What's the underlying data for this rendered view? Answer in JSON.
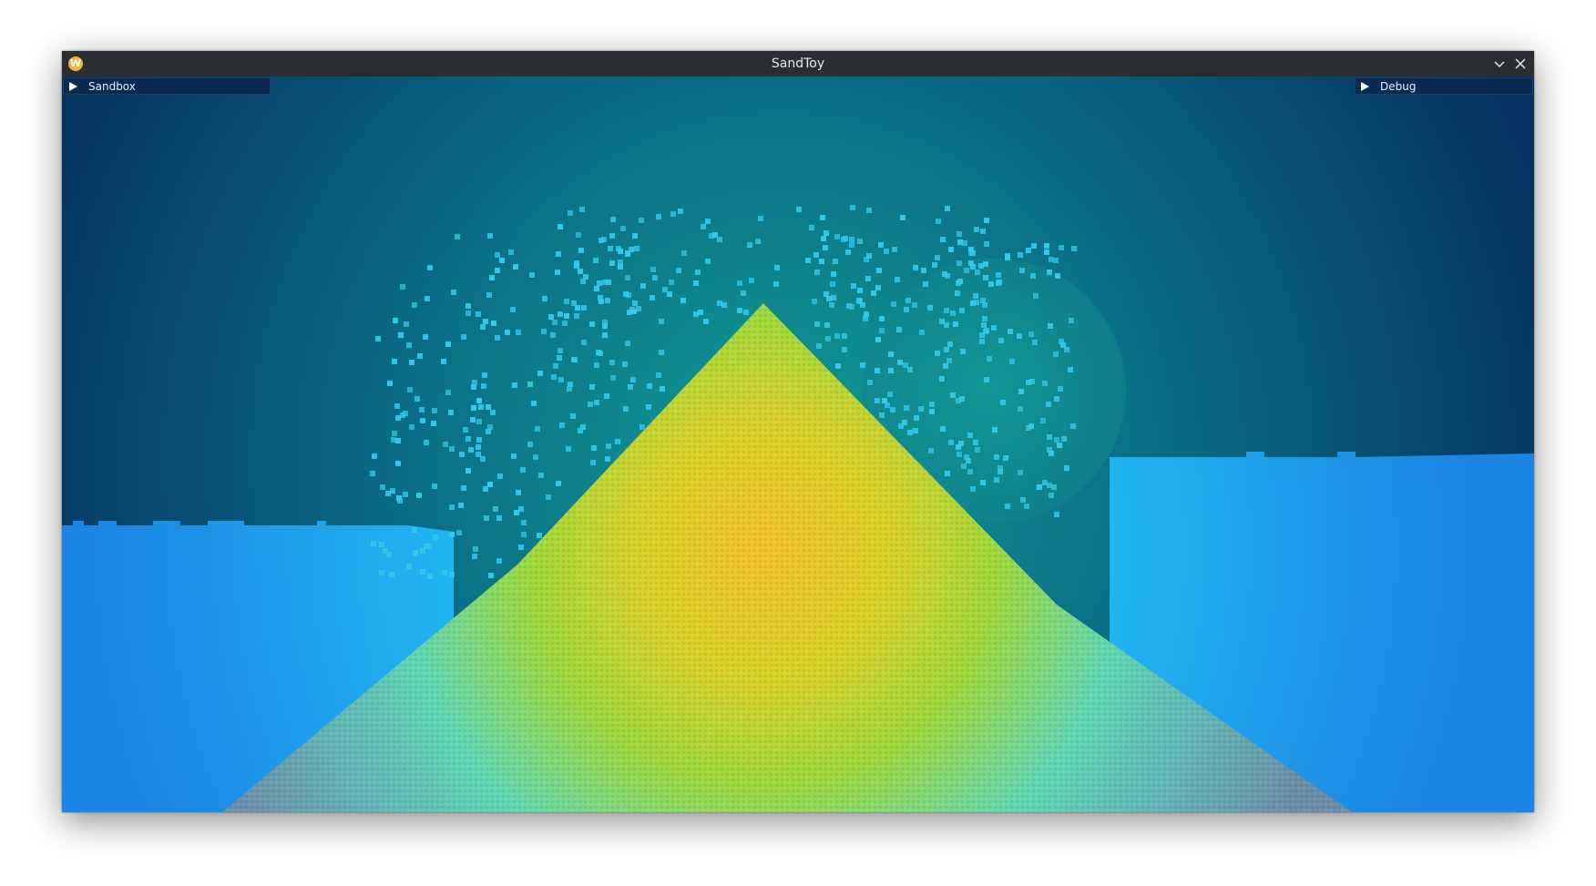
{
  "window": {
    "title": "SandToy",
    "icon": "sandtoy-app-icon",
    "icon_glyph": "W",
    "controls": [
      "minimize-chevron-icon",
      "close-icon"
    ]
  },
  "panels": {
    "sandbox": {
      "label": "Sandbox",
      "collapsed": true
    },
    "debug": {
      "label": "Debug",
      "collapsed": true
    }
  },
  "colors": {
    "titlebar": "#2a2e33",
    "panel_bg": "#0b2a52",
    "sky_dark": "#05305f",
    "sky_teal": "#0f8b8e",
    "water": "#1e8fe6",
    "water_glow": "#29d8ff",
    "spray": "#33c6e6",
    "sand_hot": "#f0c42a",
    "sand_mid": "#9ad830",
    "sand_cool": "#5fd6b8",
    "sand_edge": "#6a96a8"
  }
}
